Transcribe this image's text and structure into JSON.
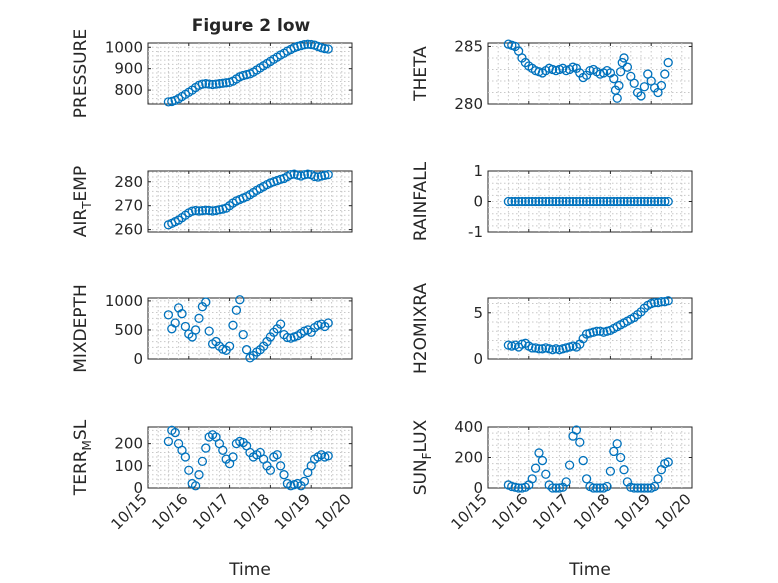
{
  "figure": {
    "title": "Figure 2 low"
  },
  "colors": {
    "marker": "#0072bd",
    "axis": "#262626",
    "grid": "#c8c8c8"
  },
  "chart_data": [
    {
      "id": "pressure",
      "type": "scatter",
      "title": "Figure 2 low",
      "ylabel": "PRESSURE",
      "xlabel": "",
      "xlim": [
        "10/15",
        "10/20"
      ],
      "ylim": [
        735,
        1020
      ],
      "yticks": [
        800,
        900,
        1000
      ],
      "ytick_labels": [
        "800",
        "900",
        "1000"
      ],
      "x": [
        "10/15 12:00",
        "10/15 14:00",
        "10/15 16:00",
        "10/15 18:00",
        "10/15 20:00",
        "10/15 22:00",
        "10/16 00:00",
        "10/16 02:00",
        "10/16 04:00",
        "10/16 06:00",
        "10/16 08:00",
        "10/16 10:00",
        "10/16 12:00",
        "10/16 14:00",
        "10/16 16:00",
        "10/16 18:00",
        "10/16 20:00",
        "10/16 22:00",
        "10/17 00:00",
        "10/17 02:00",
        "10/17 04:00",
        "10/17 06:00",
        "10/17 08:00",
        "10/17 10:00",
        "10/17 12:00",
        "10/17 14:00",
        "10/17 16:00",
        "10/17 18:00",
        "10/17 20:00",
        "10/17 22:00",
        "10/18 00:00",
        "10/18 02:00",
        "10/18 04:00",
        "10/18 06:00",
        "10/18 08:00",
        "10/18 10:00",
        "10/18 12:00",
        "10/18 14:00",
        "10/18 16:00",
        "10/18 18:00",
        "10/18 20:00",
        "10/18 22:00",
        "10/19 00:00",
        "10/19 02:00",
        "10/19 04:00",
        "10/19 06:00",
        "10/19 08:00",
        "10/19 10:00"
      ],
      "y": [
        745,
        747,
        752,
        760,
        770,
        780,
        790,
        800,
        812,
        822,
        828,
        830,
        828,
        826,
        828,
        830,
        832,
        834,
        836,
        842,
        852,
        862,
        868,
        872,
        876,
        884,
        894,
        904,
        914,
        924,
        934,
        944,
        954,
        964,
        972,
        982,
        990,
        998,
        1004,
        1008,
        1012,
        1014,
        1013,
        1010,
        1004,
        998,
        994,
        992
      ]
    },
    {
      "id": "theta",
      "type": "scatter",
      "ylabel": "THETA",
      "xlabel": "",
      "xlim": [
        "10/15",
        "10/20"
      ],
      "ylim": [
        280,
        285.3
      ],
      "yticks": [
        280,
        285
      ],
      "ytick_labels": [
        "280",
        "285"
      ],
      "x": [
        "10/15 12:00",
        "10/15 14:00",
        "10/15 16:00",
        "10/15 18:00",
        "10/15 20:00",
        "10/15 22:00",
        "10/16 00:00",
        "10/16 02:00",
        "10/16 04:00",
        "10/16 06:00",
        "10/16 08:00",
        "10/16 10:00",
        "10/16 12:00",
        "10/16 14:00",
        "10/16 16:00",
        "10/16 18:00",
        "10/16 20:00",
        "10/16 22:00",
        "10/17 00:00",
        "10/17 02:00",
        "10/17 04:00",
        "10/17 06:00",
        "10/17 08:00",
        "10/17 10:00",
        "10/17 12:00",
        "10/17 14:00",
        "10/17 16:00",
        "10/17 18:00",
        "10/17 20:00",
        "10/17 22:00",
        "10/18 00:00",
        "10/18 02:00",
        "10/18 03:00",
        "10/18 04:00",
        "10/18 05:00",
        "10/18 06:00",
        "10/18 07:00",
        "10/18 08:00",
        "10/18 10:00",
        "10/18 12:00",
        "10/18 14:00",
        "10/18 16:00",
        "10/18 18:00",
        "10/18 20:00",
        "10/18 22:00",
        "10/19 00:00",
        "10/19 02:00",
        "10/19 04:00",
        "10/19 06:00",
        "10/19 08:00",
        "10/19 10:00"
      ],
      "y": [
        285.2,
        285.1,
        285.0,
        284.6,
        284.0,
        283.6,
        283.3,
        283.1,
        282.9,
        282.8,
        282.7,
        282.9,
        283.1,
        283.0,
        282.9,
        283.0,
        283.1,
        282.9,
        283.0,
        283.2,
        283.1,
        282.7,
        282.3,
        282.5,
        282.9,
        283.0,
        282.8,
        282.6,
        282.7,
        282.9,
        282.7,
        282.2,
        281.2,
        280.5,
        281.6,
        282.8,
        283.6,
        284.0,
        283.2,
        282.4,
        281.8,
        281.0,
        280.7,
        281.5,
        282.6,
        282.0,
        281.4,
        281.0,
        281.6,
        282.6,
        283.6
      ]
    },
    {
      "id": "air_temp",
      "type": "scatter",
      "ylabel": "AIR_TEMP",
      "ylabel_main": "AIR",
      "ylabel_sub": "T",
      "ylabel_rest": "EMP",
      "xlabel": "",
      "xlim": [
        "10/15",
        "10/20"
      ],
      "ylim": [
        259,
        284.5
      ],
      "yticks": [
        260,
        270,
        280
      ],
      "ytick_labels": [
        "260",
        "270",
        "280"
      ],
      "x": [
        "10/15 12:00",
        "10/15 14:00",
        "10/15 16:00",
        "10/15 18:00",
        "10/15 20:00",
        "10/15 22:00",
        "10/16 00:00",
        "10/16 02:00",
        "10/16 04:00",
        "10/16 06:00",
        "10/16 08:00",
        "10/16 10:00",
        "10/16 12:00",
        "10/16 14:00",
        "10/16 16:00",
        "10/16 18:00",
        "10/16 20:00",
        "10/16 22:00",
        "10/17 00:00",
        "10/17 02:00",
        "10/17 04:00",
        "10/17 06:00",
        "10/17 08:00",
        "10/17 10:00",
        "10/17 12:00",
        "10/17 14:00",
        "10/17 16:00",
        "10/17 18:00",
        "10/17 20:00",
        "10/17 22:00",
        "10/18 00:00",
        "10/18 02:00",
        "10/18 04:00",
        "10/18 06:00",
        "10/18 08:00",
        "10/18 10:00",
        "10/18 12:00",
        "10/18 14:00",
        "10/18 16:00",
        "10/18 18:00",
        "10/18 20:00",
        "10/18 22:00",
        "10/19 00:00",
        "10/19 02:00",
        "10/19 04:00",
        "10/19 06:00",
        "10/19 08:00",
        "10/19 10:00"
      ],
      "y": [
        262,
        262.6,
        263.3,
        264,
        265,
        266,
        267,
        267.7,
        268,
        267.8,
        267.9,
        268.1,
        268,
        267.8,
        268,
        268.3,
        268.6,
        269,
        270,
        271.1,
        272,
        272.6,
        273.2,
        273.8,
        274.6,
        275.5,
        276.4,
        277.2,
        278,
        278.8,
        279.5,
        280,
        280.5,
        281,
        281.4,
        282.2,
        283,
        283.2,
        282.8,
        282.4,
        282.9,
        283.2,
        283,
        282.2,
        282,
        282.4,
        282.7,
        283
      ]
    },
    {
      "id": "rainfall",
      "type": "scatter",
      "ylabel": "RAINFALL",
      "xlabel": "",
      "xlim": [
        "10/15",
        "10/20"
      ],
      "ylim": [
        -1,
        1
      ],
      "yticks": [
        -1,
        0,
        1
      ],
      "ytick_labels": [
        "-1",
        "0",
        "1"
      ],
      "x": [
        "10/15 12:00",
        "10/15 14:00",
        "10/15 16:00",
        "10/15 18:00",
        "10/15 20:00",
        "10/15 22:00",
        "10/16 00:00",
        "10/16 02:00",
        "10/16 04:00",
        "10/16 06:00",
        "10/16 08:00",
        "10/16 10:00",
        "10/16 12:00",
        "10/16 14:00",
        "10/16 16:00",
        "10/16 18:00",
        "10/16 20:00",
        "10/16 22:00",
        "10/17 00:00",
        "10/17 02:00",
        "10/17 04:00",
        "10/17 06:00",
        "10/17 08:00",
        "10/17 10:00",
        "10/17 12:00",
        "10/17 14:00",
        "10/17 16:00",
        "10/17 18:00",
        "10/17 20:00",
        "10/17 22:00",
        "10/18 00:00",
        "10/18 02:00",
        "10/18 04:00",
        "10/18 06:00",
        "10/18 08:00",
        "10/18 10:00",
        "10/18 12:00",
        "10/18 14:00",
        "10/18 16:00",
        "10/18 18:00",
        "10/18 20:00",
        "10/18 22:00",
        "10/19 00:00",
        "10/19 02:00",
        "10/19 04:00",
        "10/19 06:00",
        "10/19 08:00",
        "10/19 10:00"
      ],
      "y": [
        0,
        0,
        0,
        0,
        0,
        0,
        0,
        0,
        0,
        0,
        0,
        0,
        0,
        0,
        0,
        0,
        0,
        0,
        0,
        0,
        0,
        0,
        0,
        0,
        0,
        0,
        0,
        0,
        0,
        0,
        0,
        0,
        0,
        0,
        0,
        0,
        0,
        0,
        0,
        0,
        0,
        0,
        0,
        0,
        0,
        0,
        0,
        0
      ]
    },
    {
      "id": "mixdepth",
      "type": "scatter",
      "ylabel": "MIXDEPTH",
      "xlabel": "",
      "xlim": [
        "10/15",
        "10/20"
      ],
      "ylim": [
        0,
        1050
      ],
      "yticks": [
        0,
        500,
        1000
      ],
      "ytick_labels": [
        "0",
        "500",
        "1000"
      ],
      "x": [
        "10/15 12:00",
        "10/15 14:00",
        "10/15 16:00",
        "10/15 18:00",
        "10/15 20:00",
        "10/15 22:00",
        "10/16 00:00",
        "10/16 02:00",
        "10/16 04:00",
        "10/16 06:00",
        "10/16 08:00",
        "10/16 10:00",
        "10/16 12:00",
        "10/16 14:00",
        "10/16 16:00",
        "10/16 18:00",
        "10/16 20:00",
        "10/16 22:00",
        "10/17 00:00",
        "10/17 02:00",
        "10/17 04:00",
        "10/17 06:00",
        "10/17 08:00",
        "10/17 10:00",
        "10/17 12:00",
        "10/17 14:00",
        "10/17 16:00",
        "10/17 18:00",
        "10/17 20:00",
        "10/17 22:00",
        "10/18 00:00",
        "10/18 02:00",
        "10/18 04:00",
        "10/18 06:00",
        "10/18 08:00",
        "10/18 10:00",
        "10/18 12:00",
        "10/18 14:00",
        "10/18 16:00",
        "10/18 18:00",
        "10/18 20:00",
        "10/18 22:00",
        "10/19 00:00",
        "10/19 02:00",
        "10/19 04:00",
        "10/19 06:00",
        "10/19 08:00",
        "10/19 10:00"
      ],
      "y": [
        760,
        520,
        620,
        880,
        780,
        560,
        430,
        380,
        500,
        700,
        900,
        980,
        480,
        260,
        300,
        220,
        170,
        150,
        220,
        580,
        840,
        1020,
        420,
        160,
        20,
        60,
        120,
        160,
        220,
        300,
        380,
        460,
        520,
        600,
        420,
        370,
        360,
        380,
        400,
        440,
        480,
        500,
        460,
        540,
        580,
        600,
        560,
        620
      ]
    },
    {
      "id": "h2omixra",
      "type": "scatter",
      "ylabel": "H2OMIXRA",
      "xlabel": "",
      "xlim": [
        "10/15",
        "10/20"
      ],
      "ylim": [
        0,
        6.6
      ],
      "yticks": [
        0,
        5
      ],
      "ytick_labels": [
        "0",
        "5"
      ],
      "x": [
        "10/15 12:00",
        "10/15 14:00",
        "10/15 16:00",
        "10/15 18:00",
        "10/15 20:00",
        "10/15 22:00",
        "10/16 00:00",
        "10/16 02:00",
        "10/16 04:00",
        "10/16 06:00",
        "10/16 08:00",
        "10/16 10:00",
        "10/16 12:00",
        "10/16 14:00",
        "10/16 16:00",
        "10/16 18:00",
        "10/16 20:00",
        "10/16 22:00",
        "10/17 00:00",
        "10/17 02:00",
        "10/17 04:00",
        "10/17 06:00",
        "10/17 08:00",
        "10/17 10:00",
        "10/17 12:00",
        "10/17 14:00",
        "10/17 16:00",
        "10/17 18:00",
        "10/17 20:00",
        "10/17 22:00",
        "10/18 00:00",
        "10/18 02:00",
        "10/18 04:00",
        "10/18 06:00",
        "10/18 08:00",
        "10/18 10:00",
        "10/18 12:00",
        "10/18 14:00",
        "10/18 16:00",
        "10/18 18:00",
        "10/18 20:00",
        "10/18 22:00",
        "10/19 00:00",
        "10/19 02:00",
        "10/19 04:00",
        "10/19 06:00",
        "10/19 08:00",
        "10/19 10:00"
      ],
      "y": [
        1.5,
        1.4,
        1.5,
        1.3,
        1.6,
        1.7,
        1.4,
        1.2,
        1.2,
        1.1,
        1.1,
        1.2,
        1.1,
        1.0,
        1.1,
        1.0,
        1.1,
        1.2,
        1.3,
        1.4,
        1.3,
        1.6,
        2.2,
        2.7,
        2.8,
        2.9,
        3.0,
        3.0,
        2.9,
        3.0,
        3.1,
        3.3,
        3.5,
        3.7,
        3.9,
        4.1,
        4.3,
        4.5,
        4.8,
        5.1,
        5.5,
        5.8,
        6.0,
        6.1,
        6.1,
        6.2,
        6.2,
        6.3
      ]
    },
    {
      "id": "terr_msl",
      "type": "scatter",
      "ylabel": "TERR_MSL",
      "ylabel_main": "TERR",
      "ylabel_sub": "M",
      "ylabel_rest": "SL",
      "xlabel": "Time",
      "xlim": [
        "10/15",
        "10/20"
      ],
      "ylim": [
        0,
        275
      ],
      "yticks": [
        0,
        100,
        200
      ],
      "ytick_labels": [
        "0",
        "100",
        "200"
      ],
      "xticks": [
        "10/15",
        "10/16",
        "10/17",
        "10/18",
        "10/19",
        "10/20"
      ],
      "x": [
        "10/15 12:00",
        "10/15 14:00",
        "10/15 16:00",
        "10/15 18:00",
        "10/15 20:00",
        "10/15 22:00",
        "10/16 00:00",
        "10/16 02:00",
        "10/16 04:00",
        "10/16 06:00",
        "10/16 08:00",
        "10/16 10:00",
        "10/16 12:00",
        "10/16 14:00",
        "10/16 16:00",
        "10/16 18:00",
        "10/16 20:00",
        "10/16 22:00",
        "10/17 00:00",
        "10/17 02:00",
        "10/17 04:00",
        "10/17 06:00",
        "10/17 08:00",
        "10/17 10:00",
        "10/17 12:00",
        "10/17 14:00",
        "10/17 16:00",
        "10/17 18:00",
        "10/17 20:00",
        "10/17 22:00",
        "10/18 00:00",
        "10/18 02:00",
        "10/18 04:00",
        "10/18 06:00",
        "10/18 08:00",
        "10/18 10:00",
        "10/18 12:00",
        "10/18 14:00",
        "10/18 16:00",
        "10/18 18:00",
        "10/18 20:00",
        "10/18 22:00",
        "10/19 00:00",
        "10/19 02:00",
        "10/19 04:00",
        "10/19 06:00",
        "10/19 08:00",
        "10/19 10:00"
      ],
      "y": [
        210,
        260,
        250,
        200,
        170,
        140,
        80,
        20,
        10,
        60,
        120,
        180,
        230,
        240,
        230,
        200,
        170,
        130,
        110,
        140,
        200,
        210,
        205,
        190,
        160,
        140,
        150,
        160,
        130,
        100,
        80,
        140,
        150,
        100,
        60,
        20,
        10,
        15,
        20,
        10,
        30,
        70,
        100,
        130,
        140,
        150,
        140,
        145
      ]
    },
    {
      "id": "sun_flux",
      "type": "scatter",
      "ylabel": "SUN_FLUX",
      "ylabel_main": "SUN",
      "ylabel_sub": "F",
      "ylabel_rest": "LUX",
      "xlabel": "Time",
      "xlim": [
        "10/15",
        "10/20"
      ],
      "ylim": [
        0,
        400
      ],
      "yticks": [
        0,
        200,
        400
      ],
      "ytick_labels": [
        "0",
        "200",
        "400"
      ],
      "xticks": [
        "10/15",
        "10/16",
        "10/17",
        "10/18",
        "10/19",
        "10/20"
      ],
      "x": [
        "10/15 12:00",
        "10/15 14:00",
        "10/15 16:00",
        "10/15 18:00",
        "10/15 20:00",
        "10/15 22:00",
        "10/16 00:00",
        "10/16 02:00",
        "10/16 04:00",
        "10/16 06:00",
        "10/16 08:00",
        "10/16 10:00",
        "10/16 12:00",
        "10/16 14:00",
        "10/16 16:00",
        "10/16 18:00",
        "10/16 20:00",
        "10/16 22:00",
        "10/17 00:00",
        "10/17 02:00",
        "10/17 04:00",
        "10/17 06:00",
        "10/17 08:00",
        "10/17 10:00",
        "10/17 12:00",
        "10/17 14:00",
        "10/17 16:00",
        "10/17 18:00",
        "10/17 20:00",
        "10/17 22:00",
        "10/18 00:00",
        "10/18 02:00",
        "10/18 04:00",
        "10/18 06:00",
        "10/18 08:00",
        "10/18 10:00",
        "10/18 12:00",
        "10/18 14:00",
        "10/18 16:00",
        "10/18 18:00",
        "10/18 20:00",
        "10/18 22:00",
        "10/19 00:00",
        "10/19 02:00",
        "10/19 04:00",
        "10/19 06:00",
        "10/19 08:00",
        "10/19 10:00"
      ],
      "y": [
        20,
        10,
        5,
        0,
        0,
        5,
        20,
        60,
        130,
        230,
        180,
        90,
        20,
        0,
        0,
        0,
        5,
        40,
        150,
        340,
        380,
        300,
        180,
        60,
        10,
        0,
        0,
        0,
        0,
        10,
        110,
        240,
        290,
        200,
        120,
        40,
        5,
        0,
        0,
        0,
        0,
        0,
        0,
        10,
        60,
        120,
        160,
        170
      ]
    }
  ]
}
